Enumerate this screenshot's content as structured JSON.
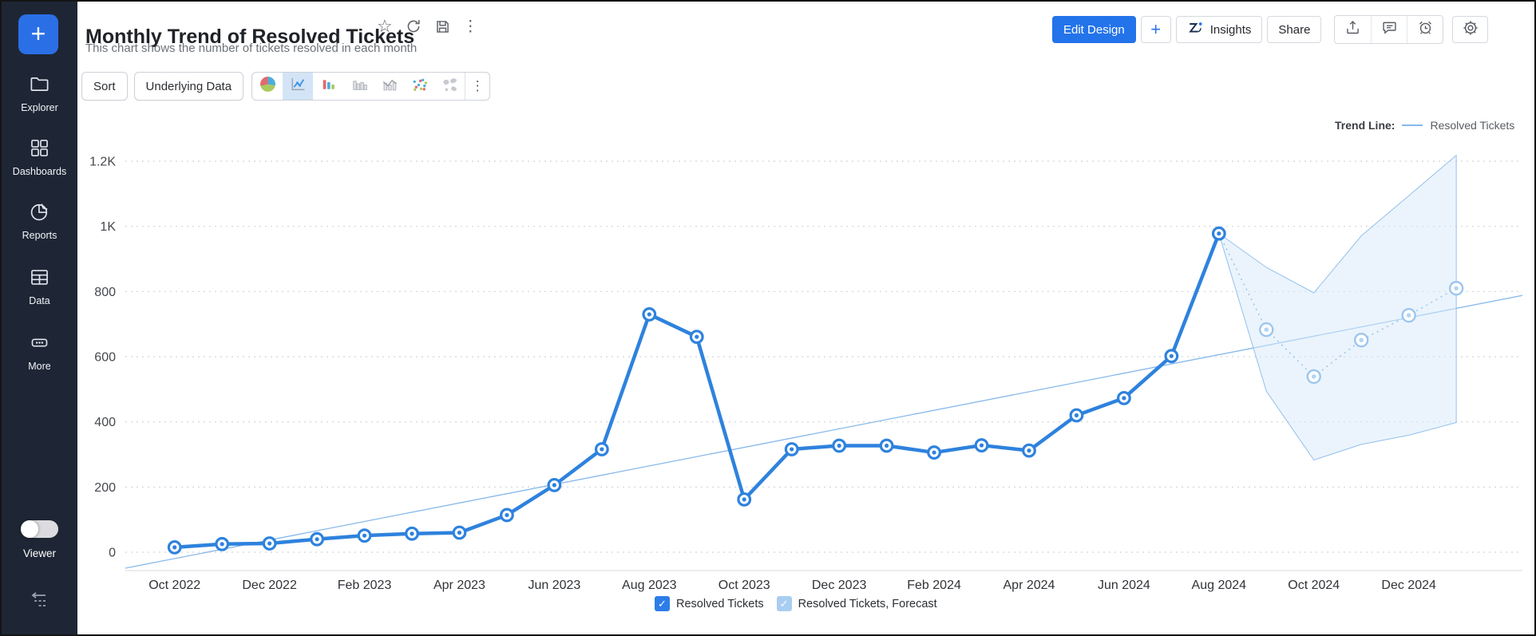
{
  "sidebar": {
    "plus_label": "+",
    "items": [
      {
        "icon": "folder-icon",
        "label": "Explorer"
      },
      {
        "icon": "dashboard-grid-icon",
        "label": "Dashboards"
      },
      {
        "icon": "pie-report-icon",
        "label": "Reports"
      },
      {
        "icon": "table-icon",
        "label": "Data"
      },
      {
        "icon": "ellipsis-icon",
        "label": "More"
      }
    ],
    "viewer_label": "Viewer",
    "viewer_toggle_state": "off"
  },
  "header": {
    "title": "Monthly Trend of Resolved Tickets",
    "subtitle": "This chart shows the number of tickets resolved in each month",
    "title_icons": [
      "star-icon",
      "refresh-icon",
      "save-icon",
      "more-vertical-icon"
    ],
    "actions": {
      "edit_design": "Edit Design",
      "plus": "+",
      "insights": "Insights",
      "share": "Share",
      "icon_buttons": [
        "export-icon",
        "comment-icon",
        "alert-icon",
        "gear-icon"
      ]
    },
    "accent_color": "#2373ea"
  },
  "toolbar": {
    "sort": "Sort",
    "underlying_data": "Underlying Data",
    "chart_types": [
      "pie",
      "line",
      "bar",
      "grouped-bar",
      "bar-line",
      "scatter",
      "map"
    ],
    "selected_chart_type": "line",
    "more": "⋮"
  },
  "trend_legend": {
    "label": "Trend Line:",
    "series": "Resolved Tickets"
  },
  "bottom_legend": [
    {
      "label": "Resolved Tickets",
      "color": "#2d7de9",
      "checked": true
    },
    {
      "label": "Resolved Tickets, Forecast",
      "color": "#a9cdf1",
      "checked": true
    }
  ],
  "chart_data": {
    "type": "line",
    "title": "Monthly Trend of Resolved Tickets",
    "x": [
      "Oct 2022",
      "Nov 2022",
      "Dec 2022",
      "Jan 2023",
      "Feb 2023",
      "Mar 2023",
      "Apr 2023",
      "May 2023",
      "Jun 2023",
      "Jul 2023",
      "Aug 2023",
      "Sep 2023",
      "Oct 2023",
      "Nov 2023",
      "Dec 2023",
      "Jan 2024",
      "Feb 2024",
      "Mar 2024",
      "Apr 2024",
      "May 2024",
      "Jun 2024",
      "Jul 2024",
      "Aug 2024",
      "Sep 2024",
      "Oct 2024",
      "Nov 2024",
      "Dec 2024",
      "Jan 2025"
    ],
    "series": [
      {
        "name": "Resolved Tickets",
        "color": "#2e82dd",
        "style": "solid",
        "start_month_index": 0,
        "values": [
          15,
          25,
          27,
          40,
          51,
          57,
          60,
          114,
          206,
          316,
          730,
          661,
          162,
          316,
          327,
          327,
          306,
          328,
          312,
          420,
          473,
          602,
          978
        ]
      },
      {
        "name": "Resolved Tickets, Forecast",
        "color": "#9cc6ef",
        "style": "dotted",
        "start_month_index": 22,
        "values": [
          978,
          683,
          539,
          651,
          727,
          810
        ]
      }
    ],
    "forecast_band": {
      "start_month_index": 22,
      "upper": [
        978,
        874,
        796,
        971,
        1094,
        1218
      ],
      "lower": [
        978,
        494,
        283,
        331,
        359,
        398
      ],
      "fill": "#d8e9f9",
      "edge": "#93c0ec"
    },
    "trend_line": {
      "name": "Resolved Tickets",
      "start_value": -49,
      "end_value": 788,
      "color": "#86b8ea"
    },
    "y_ticks": [
      "0",
      "200",
      "400",
      "600",
      "800",
      "1K",
      "1.2K"
    ],
    "y_tick_values": [
      0,
      200,
      400,
      600,
      800,
      1000,
      1200
    ],
    "x_tick_labels": [
      "Oct 2022",
      "Dec 2022",
      "Feb 2023",
      "Apr 2023",
      "Jun 2023",
      "Aug 2023",
      "Oct 2023",
      "Dec 2023",
      "Feb 2024",
      "Apr 2024",
      "Jun 2024",
      "Aug 2024",
      "Oct 2024",
      "Dec 2024"
    ],
    "ylim": [
      0,
      1200
    ],
    "grid": true,
    "legend_position": "bottom"
  }
}
